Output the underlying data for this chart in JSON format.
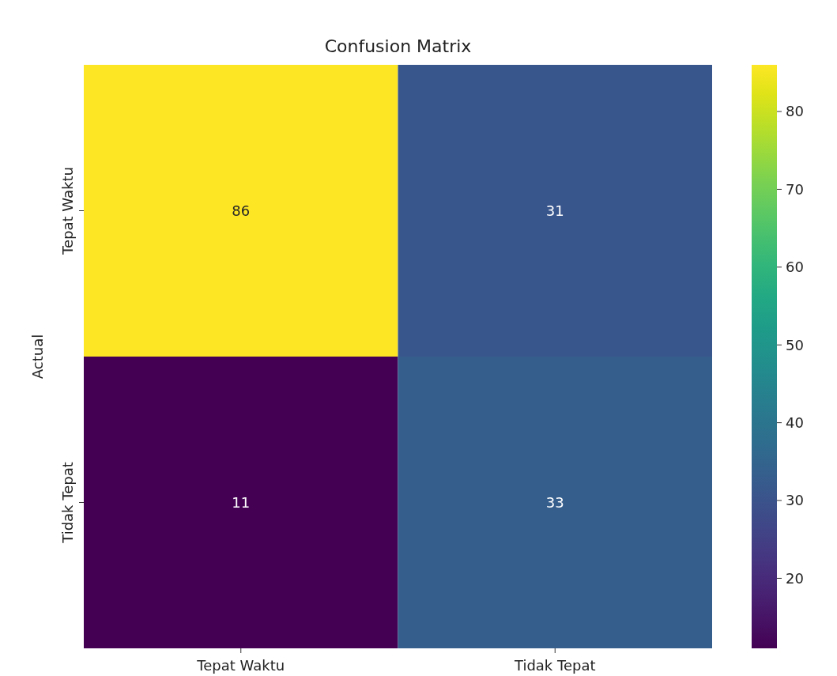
{
  "chart_data": {
    "type": "heatmap",
    "title": "Confusion Matrix",
    "ylabel": "Actual",
    "categories": [
      "Tepat Waktu",
      "Tidak Tepat"
    ],
    "y_categories": [
      "Tepat Waktu",
      "Tidak Tepat"
    ],
    "cells": [
      [
        86,
        31
      ],
      [
        11,
        33
      ]
    ],
    "clim": [
      11,
      86
    ],
    "cticks": [
      20,
      30,
      40,
      50,
      60,
      70,
      80
    ],
    "data_labels": true
  }
}
